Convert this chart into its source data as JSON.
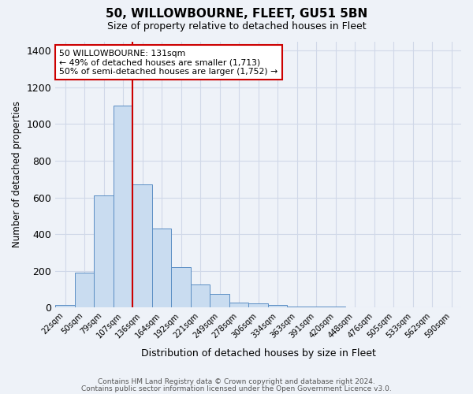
{
  "title": "50, WILLOWBOURNE, FLEET, GU51 5BN",
  "subtitle": "Size of property relative to detached houses in Fleet",
  "xlabel": "Distribution of detached houses by size in Fleet",
  "ylabel": "Number of detached properties",
  "bar_values": [
    15,
    190,
    610,
    1100,
    670,
    430,
    220,
    125,
    75,
    28,
    25,
    15,
    8,
    5,
    4,
    2,
    1,
    0,
    0,
    0,
    0
  ],
  "bar_labels": [
    "22sqm",
    "50sqm",
    "79sqm",
    "107sqm",
    "136sqm",
    "164sqm",
    "192sqm",
    "221sqm",
    "249sqm",
    "278sqm",
    "306sqm",
    "334sqm",
    "363sqm",
    "391sqm",
    "420sqm",
    "448sqm",
    "476sqm",
    "505sqm",
    "533sqm",
    "562sqm",
    "590sqm"
  ],
  "bar_color": "#c9dcf0",
  "bar_edge_color": "#5b8ec4",
  "vline_color": "#cc0000",
  "annotation_line1": "50 WILLOWBOURNE: 131sqm",
  "annotation_line2": "← 49% of detached houses are smaller (1,713)",
  "annotation_line3": "50% of semi-detached houses are larger (1,752) →",
  "annotation_box_edge_color": "#cc0000",
  "annotation_box_face_color": "#ffffff",
  "ylim": [
    0,
    1450
  ],
  "yticks": [
    0,
    200,
    400,
    600,
    800,
    1000,
    1200,
    1400
  ],
  "footer1": "Contains HM Land Registry data © Crown copyright and database right 2024.",
  "footer2": "Contains public sector information licensed under the Open Government Licence v3.0.",
  "bg_color": "#eef2f8",
  "plot_bg_color": "#eef2f8",
  "grid_color": "#d0d8e8",
  "vline_bar_index": 3.5
}
